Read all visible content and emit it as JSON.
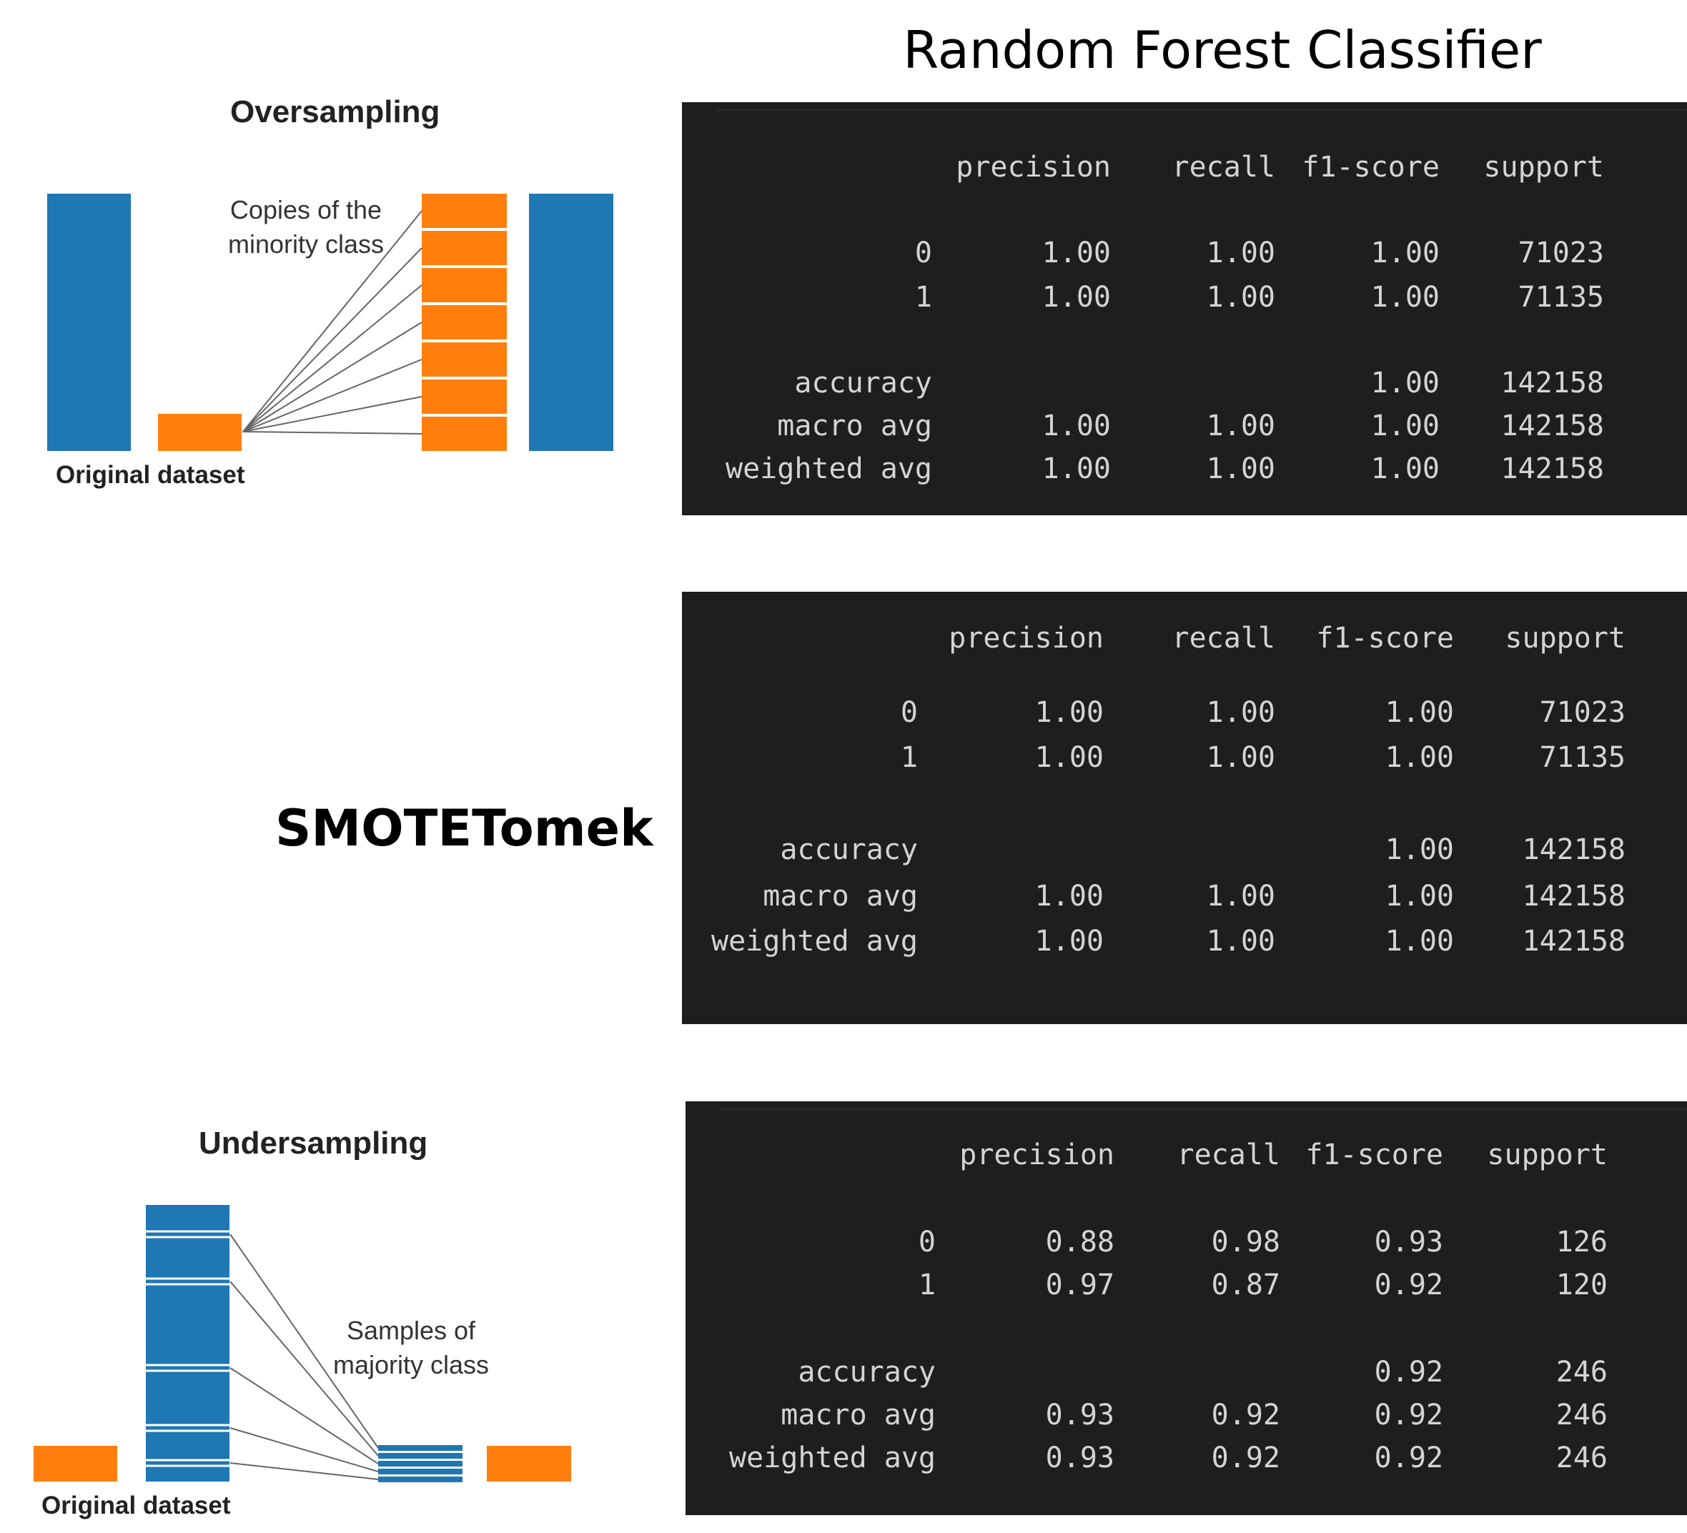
{
  "title": "Random Forest Classifier",
  "oversampling": {
    "title": "Oversampling",
    "annotation_line1": "Copies of the",
    "annotation_line2": "minority class",
    "footer": "Original dataset",
    "colors": {
      "majority": "#1f77b4",
      "minority": "#ff7f0e"
    }
  },
  "smote_label": "SMOTETomek",
  "undersampling": {
    "title": "Undersampling",
    "annotation_line1": "Samples of",
    "annotation_line2": "majority class",
    "footer": "Original dataset"
  },
  "reports": [
    {
      "headers": [
        "precision",
        "recall",
        "f1-score",
        "support"
      ],
      "rows": [
        {
          "label": "0",
          "precision": "1.00",
          "recall": "1.00",
          "f1": "1.00",
          "support": "71023"
        },
        {
          "label": "1",
          "precision": "1.00",
          "recall": "1.00",
          "f1": "1.00",
          "support": "71135"
        },
        {
          "label": "accuracy",
          "precision": "",
          "recall": "",
          "f1": "1.00",
          "support": "142158"
        },
        {
          "label": "macro avg",
          "precision": "1.00",
          "recall": "1.00",
          "f1": "1.00",
          "support": "142158"
        },
        {
          "label": "weighted avg",
          "precision": "1.00",
          "recall": "1.00",
          "f1": "1.00",
          "support": "142158"
        }
      ]
    },
    {
      "headers": [
        "precision",
        "recall",
        "f1-score",
        "support"
      ],
      "rows": [
        {
          "label": "0",
          "precision": "1.00",
          "recall": "1.00",
          "f1": "1.00",
          "support": "71023"
        },
        {
          "label": "1",
          "precision": "1.00",
          "recall": "1.00",
          "f1": "1.00",
          "support": "71135"
        },
        {
          "label": "accuracy",
          "precision": "",
          "recall": "",
          "f1": "1.00",
          "support": "142158"
        },
        {
          "label": "macro avg",
          "precision": "1.00",
          "recall": "1.00",
          "f1": "1.00",
          "support": "142158"
        },
        {
          "label": "weighted avg",
          "precision": "1.00",
          "recall": "1.00",
          "f1": "1.00",
          "support": "142158"
        }
      ]
    },
    {
      "headers": [
        "precision",
        "recall",
        "f1-score",
        "support"
      ],
      "rows": [
        {
          "label": "0",
          "precision": "0.88",
          "recall": "0.98",
          "f1": "0.93",
          "support": "126"
        },
        {
          "label": "1",
          "precision": "0.97",
          "recall": "0.87",
          "f1": "0.92",
          "support": "120"
        },
        {
          "label": "accuracy",
          "precision": "",
          "recall": "",
          "f1": "0.92",
          "support": "246"
        },
        {
          "label": "macro avg",
          "precision": "0.93",
          "recall": "0.92",
          "f1": "0.92",
          "support": "246"
        },
        {
          "label": "weighted avg",
          "precision": "0.93",
          "recall": "0.92",
          "f1": "0.92",
          "support": "246"
        }
      ]
    }
  ]
}
